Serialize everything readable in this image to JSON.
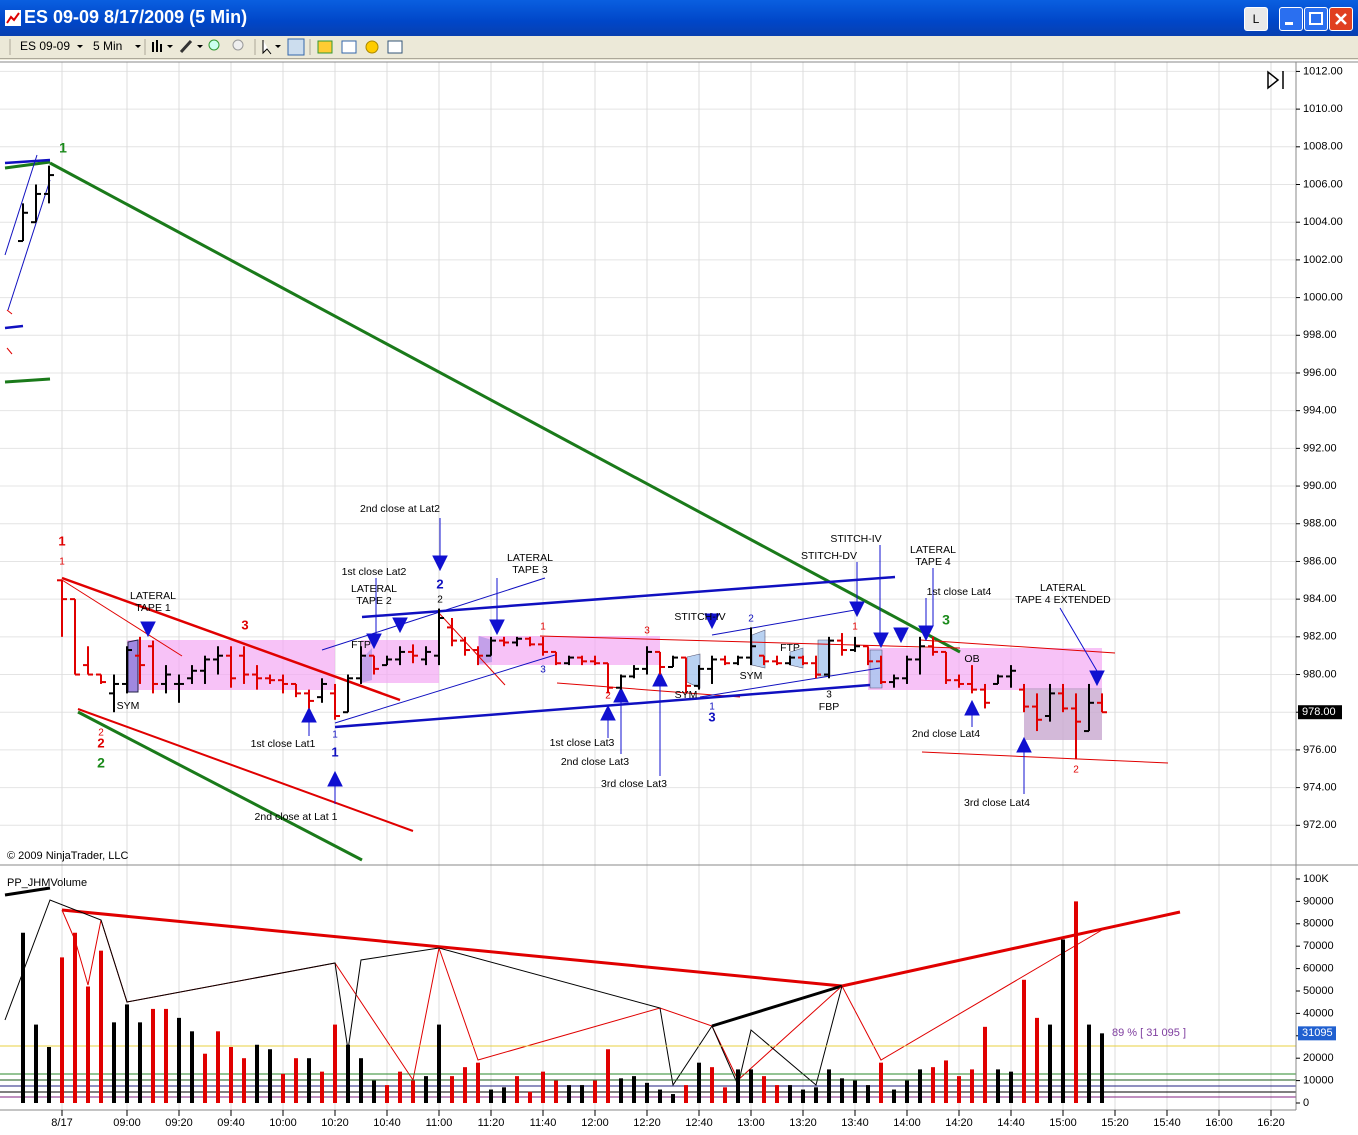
{
  "window": {
    "title": "ES 09-09  8/17/2009 (5 Min)",
    "buttons": [
      "L"
    ]
  },
  "toolbar": {
    "instrument": "ES 09-09",
    "interval": "5 Min"
  },
  "chart_data": [
    {
      "type": "ohlc",
      "copyright": "© 2009 NinjaTrader, LLC",
      "ylim": [
        970,
        1012.5
      ],
      "yticks": [
        {
          "value": 972,
          "label": "972.00"
        },
        {
          "value": 974,
          "label": "974.00"
        },
        {
          "value": 976,
          "label": "976.00"
        },
        {
          "value": 978,
          "label": "978.00"
        },
        {
          "value": 980,
          "label": "980.00"
        },
        {
          "value": 982,
          "label": "982.00"
        },
        {
          "value": 984,
          "label": "984.00"
        },
        {
          "value": 986,
          "label": "986.00"
        },
        {
          "value": 988,
          "label": "988.00"
        },
        {
          "value": 990,
          "label": "990.00"
        },
        {
          "value": 992,
          "label": "992.00"
        },
        {
          "value": 994,
          "label": "994.00"
        },
        {
          "value": 996,
          "label": "996.00"
        },
        {
          "value": 998,
          "label": "998.00"
        },
        {
          "value": 1000,
          "label": "1000.00"
        },
        {
          "value": 1002,
          "label": "1002.00"
        },
        {
          "value": 1004,
          "label": "1004.00"
        },
        {
          "value": 1006,
          "label": "1006.00"
        },
        {
          "value": 1008,
          "label": "1008.00"
        },
        {
          "value": 1010,
          "label": "1010.00"
        },
        {
          "value": 1012,
          "label": "1012.00"
        }
      ],
      "last_price": {
        "value": 978,
        "label": "978.00"
      },
      "x_labels": [
        "8/17",
        "09:00",
        "09:20",
        "09:40",
        "10:00",
        "10:20",
        "10:40",
        "11:00",
        "11:20",
        "11:40",
        "12:00",
        "12:20",
        "12:40",
        "13:00",
        "13:20",
        "13:40",
        "14:00",
        "14:20",
        "14:40",
        "15:00",
        "15:20",
        "15:40",
        "16:00",
        "16:20"
      ],
      "ohlc": [
        [
          1003,
          1005,
          1003,
          1004.5
        ],
        [
          1004,
          1006,
          1004,
          1005.5
        ],
        [
          1005.5,
          1007,
          1005,
          1006.5
        ],
        [
          985,
          985,
          982,
          984
        ],
        [
          984,
          984,
          980,
          980
        ],
        [
          980.5,
          981.5,
          980,
          980
        ],
        [
          980,
          980,
          979.5,
          979.6
        ],
        [
          979,
          980,
          978,
          979.5
        ],
        [
          979.5,
          981.5,
          979,
          981.3
        ],
        [
          981,
          982,
          979.5,
          980.5
        ],
        [
          981.5,
          981.8,
          979,
          979.5
        ],
        [
          979.5,
          980.5,
          979,
          980
        ],
        [
          979.5,
          980,
          978.5,
          979.5
        ],
        [
          979.8,
          980.5,
          979.5,
          980.2
        ],
        [
          980.2,
          981,
          979.5,
          980.8
        ],
        [
          980.8,
          981.5,
          980,
          981
        ],
        [
          981,
          981.5,
          979.3,
          979.8
        ],
        [
          981,
          981.5,
          979.5,
          980
        ],
        [
          980,
          980.5,
          979.2,
          979.8
        ],
        [
          979.8,
          980,
          979.5,
          979.7
        ],
        [
          979.7,
          980,
          979,
          979.5
        ],
        [
          979.5,
          979.5,
          978.8,
          979
        ],
        [
          979,
          979.2,
          978.2,
          978.6
        ],
        [
          978.8,
          979.8,
          978.5,
          979.5
        ],
        [
          979,
          979.5,
          977.6,
          977.8
        ],
        [
          978,
          980,
          978,
          979.8
        ],
        [
          979.8,
          981.5,
          979.5,
          981
        ],
        [
          981,
          981,
          980,
          980.3
        ],
        [
          980.5,
          981,
          980.5,
          980.8
        ],
        [
          980.8,
          981.5,
          980.5,
          981.2
        ],
        [
          981.2,
          981.6,
          980.6,
          981
        ],
        [
          980.8,
          981.5,
          980.5,
          981.2
        ],
        [
          981,
          983.5,
          980.5,
          983
        ],
        [
          982.5,
          983,
          981.5,
          981.8
        ],
        [
          981.8,
          982,
          981,
          981.3
        ],
        [
          981.3,
          981.5,
          980.5,
          981
        ],
        [
          981,
          982,
          981,
          981.8
        ],
        [
          981.8,
          982,
          981.5,
          981.7
        ],
        [
          981.7,
          982,
          981.5,
          981.9
        ],
        [
          981.9,
          982,
          981.5,
          981.6
        ],
        [
          981.6,
          982,
          981,
          981.2
        ],
        [
          981.2,
          981.2,
          980.5,
          980.6
        ],
        [
          980.6,
          981,
          980.5,
          980.9
        ],
        [
          980.9,
          981,
          980.5,
          980.7
        ],
        [
          980.7,
          981,
          980.5,
          980.6
        ],
        [
          980.6,
          980.6,
          979,
          979.3
        ],
        [
          979.3,
          980,
          979.2,
          979.9
        ],
        [
          979.9,
          980.5,
          979.8,
          980.3
        ],
        [
          980.3,
          981.5,
          980,
          981.2
        ],
        [
          981.2,
          981.2,
          980,
          980.4
        ],
        [
          980.4,
          981,
          980.4,
          980.9
        ],
        [
          980.9,
          980.9,
          979,
          979.4
        ],
        [
          979.4,
          980.5,
          979.2,
          980.3
        ],
        [
          980.3,
          981,
          979.5,
          980.8
        ],
        [
          980.8,
          981,
          980.5,
          980.6
        ],
        [
          980.6,
          981,
          980.5,
          980.9
        ],
        [
          980.9,
          982.5,
          980.5,
          981.5
        ],
        [
          981,
          981,
          980.5,
          980.7
        ],
        [
          980.7,
          981,
          980.5,
          980.6
        ],
        [
          980.6,
          981,
          980.5,
          980.9
        ],
        [
          980.9,
          981,
          980.5,
          980.6
        ],
        [
          980.6,
          981,
          979.8,
          980
        ],
        [
          980,
          982,
          979.8,
          981.8
        ],
        [
          981.8,
          982.2,
          981,
          981.3
        ],
        [
          981.3,
          982,
          981.2,
          981.5
        ],
        [
          981.5,
          981.5,
          980.5,
          980.7
        ],
        [
          980.7,
          981,
          979.5,
          979.6
        ],
        [
          979.6,
          980,
          979.3,
          979.8
        ],
        [
          979.8,
          981,
          979.5,
          980.8
        ],
        [
          980.8,
          982,
          980,
          981.5
        ],
        [
          981.5,
          982,
          981,
          981.2
        ],
        [
          981.2,
          981.2,
          979.5,
          979.7
        ],
        [
          979.7,
          980,
          979.3,
          979.5
        ],
        [
          979.5,
          980.5,
          979,
          979.2
        ],
        [
          979.2,
          979.5,
          978.2,
          978.5
        ],
        [
          979.5,
          980,
          979.5,
          979.9
        ],
        [
          979.9,
          980.5,
          979.3,
          980.2
        ],
        [
          979.2,
          979.5,
          978,
          978.3
        ],
        [
          978.3,
          979,
          977,
          977.6
        ],
        [
          977.8,
          979.5,
          977.5,
          979
        ],
        [
          979,
          979.5,
          978,
          978.2
        ],
        [
          978.2,
          979,
          975.5,
          977.5
        ],
        [
          977,
          979.5,
          977,
          978.5
        ],
        [
          978.5,
          979,
          978,
          978
        ]
      ],
      "annotations": [
        "1",
        "1",
        "1",
        "2",
        "2",
        "2",
        "LATERAL",
        "TAPE 1",
        "SYM",
        "3",
        "1st close Lat1",
        "2nd close at Lat 1",
        "1",
        "1",
        "FTP",
        "1st close Lat2",
        "LATERAL",
        "TAPE 2",
        "2nd close at Lat2",
        "2",
        "2",
        "LATERAL",
        "TAPE 3",
        "1",
        "3",
        "3",
        "2",
        "1st close Lat3",
        "2nd close Lat3",
        "3rd close Lat3",
        "STITCH-IV",
        "SYM",
        "1",
        "3",
        "2",
        "SYM",
        "FTP",
        "3",
        "FBP",
        "STITCH-IV",
        "STITCH-DV",
        "1",
        "LATERAL",
        "TAPE 4",
        "1st close Lat4",
        "3",
        "OB",
        "2nd close Lat4",
        "3rd close Lat4",
        "LATERAL",
        "TAPE 4 EXTENDED",
        "2"
      ]
    },
    {
      "type": "bar",
      "title": "PP_JHMVolume",
      "ylim": [
        -3125,
        104900
      ],
      "yticks": [
        0,
        10000,
        20000,
        30000,
        40000,
        50000,
        60000,
        70000,
        80000,
        90000,
        {
          "value": 100000,
          "label": "100K"
        }
      ],
      "percent_label": "89 % [ 31 095 ]",
      "values": [
        76000,
        35000,
        25000,
        65000,
        76000,
        52000,
        68000,
        36000,
        44000,
        36000,
        42000,
        42000,
        38000,
        32000,
        22000,
        32000,
        25000,
        20000,
        26000,
        24000,
        13000,
        20000,
        20000,
        14000,
        35000,
        26000,
        20000,
        10000,
        8000,
        14000,
        10000,
        12000,
        35000,
        12000,
        16000,
        18000,
        6000,
        7000,
        12000,
        5000,
        14000,
        10000,
        8000,
        8000,
        10000,
        24000,
        11000,
        12000,
        9000,
        6000,
        4000,
        8000,
        18000,
        16000,
        7000,
        15000,
        15000,
        12000,
        8000,
        8000,
        6000,
        7000,
        15000,
        11000,
        10000,
        8000,
        18000,
        6000,
        10000,
        15000,
        16000,
        19000,
        12000,
        15000,
        34000,
        15000,
        14000,
        55000,
        38000,
        35000,
        73000,
        90000,
        35000,
        31095
      ],
      "colors": [
        "#000000",
        "#000000",
        "#000000",
        "#e00000",
        "#e00000",
        "#e00000",
        "#e00000",
        "#000000",
        "#000000",
        "#000000",
        "#e00000",
        "#e00000",
        "#000000",
        "#000000",
        "#e00000",
        "#e00000",
        "#e00000",
        "#e00000",
        "#000000",
        "#000000",
        "#e00000",
        "#e00000",
        "#000000",
        "#e00000",
        "#e00000",
        "#000000",
        "#000000",
        "#000000",
        "#e00000",
        "#e00000",
        "#e00000",
        "#000000",
        "#000000",
        "#e00000",
        "#e00000",
        "#e00000",
        "#000000",
        "#000000",
        "#e00000",
        "#e00000",
        "#e00000",
        "#e00000",
        "#000000",
        "#000000",
        "#e00000",
        "#e00000",
        "#000000",
        "#000000",
        "#000000",
        "#000000",
        "#000000",
        "#e00000",
        "#000000",
        "#e00000",
        "#e00000",
        "#000000",
        "#000000",
        "#e00000",
        "#e00000",
        "#000000",
        "#000000",
        "#000000",
        "#000000",
        "#000000",
        "#000000",
        "#000000",
        "#e00000",
        "#000000",
        "#000000",
        "#000000",
        "#e00000",
        "#e00000",
        "#e00000",
        "#e00000",
        "#e00000",
        "#000000",
        "#000000",
        "#e00000",
        "#e00000",
        "#000000",
        "#000000",
        "#e00000",
        "#000000",
        "#000000"
      ]
    }
  ]
}
